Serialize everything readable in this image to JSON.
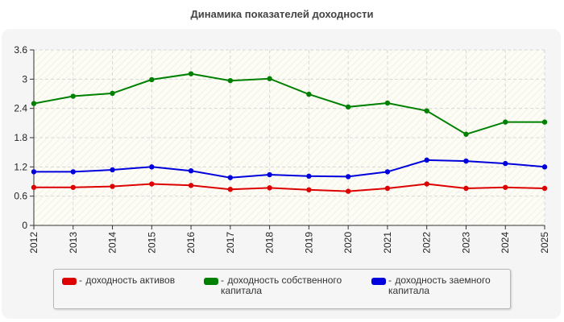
{
  "chart_data": {
    "type": "line",
    "title": "Динамика показателей доходности",
    "x": [
      "2012",
      "2013",
      "2014",
      "2015",
      "2016",
      "2017",
      "2018",
      "2019",
      "2020",
      "2021",
      "2022",
      "2023",
      "2024",
      "2025"
    ],
    "ylim": [
      0,
      3.6
    ],
    "yticks": [
      "0",
      "0.6",
      "1.2",
      "1.8",
      "2.4",
      "3",
      "3.6"
    ],
    "grid": true,
    "legend_position": "bottom",
    "series": [
      {
        "name": "доходность активов",
        "color": "#dd0000",
        "values": [
          0.78,
          0.78,
          0.8,
          0.85,
          0.82,
          0.74,
          0.77,
          0.73,
          0.7,
          0.76,
          0.85,
          0.76,
          0.78,
          0.76
        ]
      },
      {
        "name": "доходность собственного капитала",
        "color": "#008000",
        "values": [
          2.5,
          2.65,
          2.71,
          2.99,
          3.11,
          2.97,
          3.01,
          2.69,
          2.43,
          2.51,
          2.35,
          1.87,
          2.12,
          2.12
        ]
      },
      {
        "name": "доходность заемного капитала",
        "color": "#0000dd",
        "values": [
          1.1,
          1.1,
          1.14,
          1.2,
          1.12,
          0.98,
          1.04,
          1.01,
          1.0,
          1.1,
          1.34,
          1.32,
          1.27,
          1.2
        ]
      }
    ]
  }
}
